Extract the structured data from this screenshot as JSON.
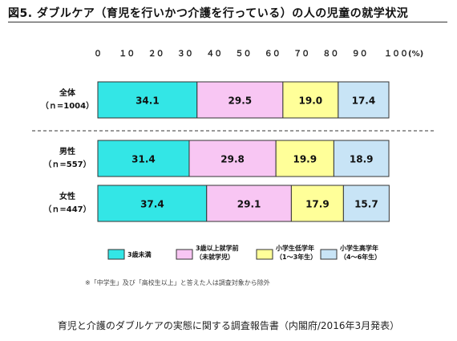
{
  "title": "図5. ダブルケア（育児を行いかつ介護を行っている）の人の児童の就学状況",
  "source": "育児と介護のダブルケアの実態に関する調査報告書（内閣府/2016年3月発表）",
  "note": "※「中学生」及び「高校生以上」と答えた人は調査対象から除外",
  "chart_data": {
    "type": "bar",
    "orientation": "horizontal",
    "stacked": "100%",
    "x_ticks": [
      "０",
      "１０",
      "２０",
      "３０",
      "４０",
      "５０",
      "６０",
      "７０",
      "８０",
      "９０",
      "１００(%)"
    ],
    "xlim": [
      0,
      100
    ],
    "categories": [
      {
        "name": "全体",
        "sub": "（ｎ=1004）"
      },
      {
        "name": "男性",
        "sub": "（ｎ=557）"
      },
      {
        "name": "女性",
        "sub": "（ｎ=447）"
      }
    ],
    "series": [
      {
        "name": "3歳未満",
        "values": [
          34.1,
          31.4,
          37.4
        ],
        "color": "#33e6e6"
      },
      {
        "name": "3歳以上就学前\n（未就学児）",
        "values": [
          29.5,
          29.8,
          29.1
        ],
        "color": "#f8c6f3"
      },
      {
        "name": "小学生低学年\n（1～3年生）",
        "values": [
          19.0,
          19.9,
          17.9
        ],
        "color": "#ffff99"
      },
      {
        "name": "小学生高学年\n（4～6年生）",
        "values": [
          17.4,
          18.9,
          15.7
        ],
        "color": "#c8e4f6"
      }
    ],
    "value_labels": [
      [
        "34.1",
        "29.5",
        "19.0",
        "17.4"
      ],
      [
        "31.4",
        "29.8",
        "19.9",
        "18.9"
      ],
      [
        "37.4",
        "29.1",
        "17.9",
        "15.7"
      ]
    ],
    "legend_position": "bottom",
    "grid": false
  }
}
